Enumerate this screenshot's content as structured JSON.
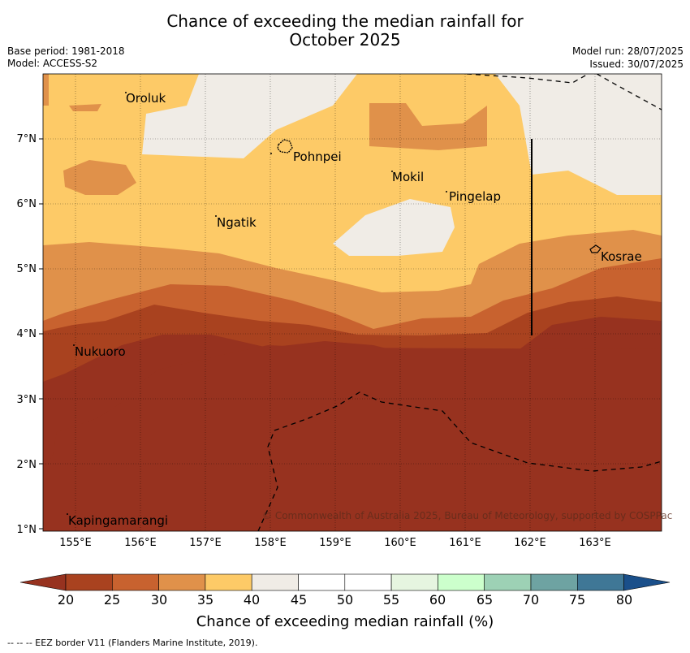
{
  "header": {
    "title_line1": "Chance of exceeding the median rainfall for",
    "title_line2": "October 2025",
    "base_period": "Base period: 1981-2018",
    "model": "Model: ACCESS-S2",
    "model_run": "Model run: 28/07/2025",
    "issued": "Issued: 30/07/2025"
  },
  "map": {
    "lat_labels": [
      "7°N",
      "6°N",
      "5°N",
      "4°N",
      "3°N",
      "2°N",
      "1°N"
    ],
    "lon_labels": [
      "155°E",
      "156°E",
      "157°E",
      "158°E",
      "159°E",
      "160°E",
      "161°E",
      "162°E",
      "163°E"
    ],
    "places": [
      "Oroluk",
      "Pohnpei",
      "Mokil",
      "Pingelap",
      "Ngatik",
      "Kosrae",
      "Nukuoro",
      "Kapingamarangi"
    ],
    "copyright": "© Commonwealth of Australia 2025, Bureau of Meteorology, supported by COSPPac"
  },
  "colorbar": {
    "ticks": [
      "20",
      "25",
      "30",
      "35",
      "40",
      "45",
      "50",
      "55",
      "60",
      "65",
      "70",
      "75",
      "80"
    ],
    "colors": [
      "#a9421f",
      "#c8622f",
      "#e0914a",
      "#fdca67",
      "#f0ece6",
      "#ffffff",
      "#ffffff",
      "#e6f5e0",
      "#ccffcc",
      "#9dd1b5",
      "#6ea3a2",
      "#3f7796",
      "#1a4f8a"
    ],
    "label": "Chance of exceeding median rainfall (%)"
  },
  "footer": "--  --  -- EEZ border V11 (Flanders Marine Institute, 2019)."
}
